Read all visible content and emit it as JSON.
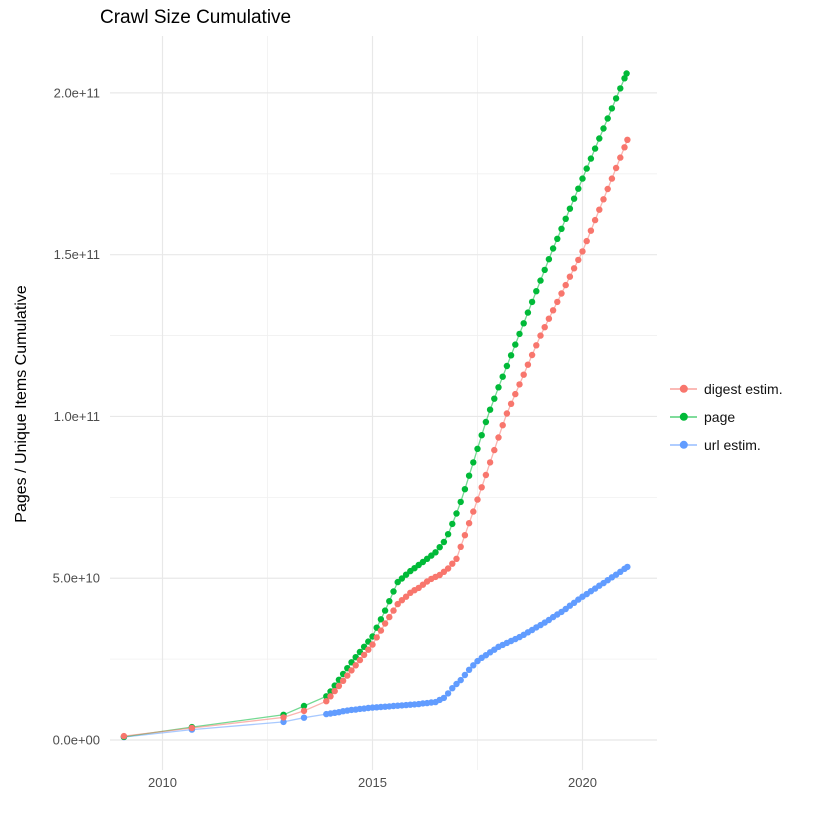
{
  "title": "Crawl Size Cumulative",
  "y_axis": {
    "title": "Pages / Unique Items Cumulative",
    "tick_labels": [
      "0.0e+00",
      "5.0e+10",
      "1.0e+11",
      "1.5e+11",
      "2.0e+11"
    ],
    "tick_values_e9": [
      0,
      50,
      100,
      150,
      200
    ],
    "minor_values_e9": [
      25,
      75,
      125,
      175
    ]
  },
  "x_axis": {
    "tick_labels": [
      "2010",
      "2015",
      "2020"
    ],
    "tick_values": [
      2010,
      2015,
      2020
    ],
    "minor_values": [
      2012.5,
      2017.5
    ]
  },
  "legend": {
    "items": [
      {
        "label": "digest estim.",
        "color": "#F8766D"
      },
      {
        "label": "page",
        "color": "#00BA38"
      },
      {
        "label": "url estim.",
        "color": "#619CFF"
      }
    ]
  },
  "chart_data": {
    "type": "scatter",
    "title": "Crawl Size Cumulative",
    "xlabel": "",
    "ylabel": "Pages / Unique Items Cumulative",
    "x_range": [
      2008.75,
      2021.75
    ],
    "y_range_e9": [
      0,
      210
    ],
    "values_unit": "pages, in billions (1e9)",
    "grid": true,
    "legend_position": "right",
    "series": [
      {
        "name": "digest estim.",
        "color": "#F8766D",
        "points": [
          [
            2009.08,
            1.2
          ],
          [
            2010.7,
            3.7
          ],
          [
            2012.88,
            7.0
          ],
          [
            2013.37,
            9.0
          ],
          [
            2013.9,
            12.0
          ],
          [
            2014.0,
            13.5
          ],
          [
            2014.1,
            15.1
          ],
          [
            2014.2,
            16.7
          ],
          [
            2014.3,
            18.3
          ],
          [
            2014.4,
            19.9
          ],
          [
            2014.5,
            21.5
          ],
          [
            2014.6,
            23.1
          ],
          [
            2014.7,
            24.7
          ],
          [
            2014.8,
            26.3
          ],
          [
            2014.9,
            27.9
          ],
          [
            2015.0,
            29.5
          ],
          [
            2015.1,
            31.7
          ],
          [
            2015.2,
            33.8
          ],
          [
            2015.3,
            36.0
          ],
          [
            2015.4,
            38.0
          ],
          [
            2015.5,
            40.0
          ],
          [
            2015.6,
            42.0
          ],
          [
            2015.7,
            43.2
          ],
          [
            2015.8,
            44.3
          ],
          [
            2015.9,
            45.5
          ],
          [
            2016.0,
            46.3
          ],
          [
            2016.1,
            47.0
          ],
          [
            2016.2,
            48.0
          ],
          [
            2016.3,
            49.0
          ],
          [
            2016.4,
            49.8
          ],
          [
            2016.5,
            50.4
          ],
          [
            2016.6,
            51.0
          ],
          [
            2016.7,
            52.0
          ],
          [
            2016.8,
            53.0
          ],
          [
            2016.9,
            54.5
          ],
          [
            2017.0,
            56.0
          ],
          [
            2017.1,
            59.7
          ],
          [
            2017.2,
            63.3
          ],
          [
            2017.3,
            67.0
          ],
          [
            2017.4,
            70.6
          ],
          [
            2017.5,
            74.3
          ],
          [
            2017.6,
            78.1
          ],
          [
            2017.7,
            81.9
          ],
          [
            2017.8,
            85.8
          ],
          [
            2017.9,
            89.6
          ],
          [
            2018.0,
            93.5
          ],
          [
            2018.1,
            97.3
          ],
          [
            2018.2,
            100.9
          ],
          [
            2018.3,
            103.9
          ],
          [
            2018.4,
            106.9
          ],
          [
            2018.5,
            109.9
          ],
          [
            2018.6,
            112.9
          ],
          [
            2018.7,
            116.0
          ],
          [
            2018.8,
            119.0
          ],
          [
            2018.9,
            122.0
          ],
          [
            2019.0,
            125.0
          ],
          [
            2019.1,
            127.6
          ],
          [
            2019.2,
            130.2
          ],
          [
            2019.3,
            132.8
          ],
          [
            2019.4,
            135.4
          ],
          [
            2019.5,
            138.0
          ],
          [
            2019.6,
            140.6
          ],
          [
            2019.7,
            143.2
          ],
          [
            2019.8,
            145.8
          ],
          [
            2019.9,
            148.4
          ],
          [
            2020.0,
            151.0
          ],
          [
            2020.1,
            154.2
          ],
          [
            2020.2,
            157.4
          ],
          [
            2020.3,
            160.7
          ],
          [
            2020.4,
            163.9
          ],
          [
            2020.5,
            167.1
          ],
          [
            2020.6,
            170.3
          ],
          [
            2020.7,
            173.5
          ],
          [
            2020.8,
            176.8
          ],
          [
            2020.9,
            180.0
          ],
          [
            2021.0,
            183.2
          ],
          [
            2021.07,
            185.5
          ]
        ]
      },
      {
        "name": "page",
        "color": "#00BA38",
        "points": [
          [
            2009.08,
            1.0
          ],
          [
            2010.7,
            4.0
          ],
          [
            2012.88,
            7.8
          ],
          [
            2013.37,
            10.5
          ],
          [
            2013.9,
            13.5
          ],
          [
            2014.0,
            15.0
          ],
          [
            2014.1,
            16.8
          ],
          [
            2014.2,
            18.6
          ],
          [
            2014.3,
            20.4
          ],
          [
            2014.4,
            22.2
          ],
          [
            2014.5,
            24.0
          ],
          [
            2014.6,
            25.6
          ],
          [
            2014.7,
            27.2
          ],
          [
            2014.8,
            28.8
          ],
          [
            2014.9,
            30.4
          ],
          [
            2015.0,
            32.0
          ],
          [
            2015.1,
            34.7
          ],
          [
            2015.2,
            37.3
          ],
          [
            2015.3,
            40.0
          ],
          [
            2015.4,
            42.9
          ],
          [
            2015.5,
            45.9
          ],
          [
            2015.6,
            48.8
          ],
          [
            2015.7,
            49.9
          ],
          [
            2015.8,
            51.1
          ],
          [
            2015.9,
            52.2
          ],
          [
            2016.0,
            53.1
          ],
          [
            2016.1,
            54.1
          ],
          [
            2016.2,
            55.0
          ],
          [
            2016.3,
            56.0
          ],
          [
            2016.4,
            57.0
          ],
          [
            2016.5,
            58.0
          ],
          [
            2016.6,
            59.6
          ],
          [
            2016.7,
            61.2
          ],
          [
            2016.8,
            63.6
          ],
          [
            2016.9,
            66.8
          ],
          [
            2017.0,
            70.0
          ],
          [
            2017.1,
            73.6
          ],
          [
            2017.2,
            77.5
          ],
          [
            2017.3,
            81.7
          ],
          [
            2017.4,
            85.8
          ],
          [
            2017.5,
            90.0
          ],
          [
            2017.6,
            94.2
          ],
          [
            2017.7,
            98.3
          ],
          [
            2017.8,
            102.1
          ],
          [
            2017.9,
            105.5
          ],
          [
            2018.0,
            109.0
          ],
          [
            2018.1,
            112.3
          ],
          [
            2018.2,
            115.6
          ],
          [
            2018.3,
            118.9
          ],
          [
            2018.4,
            122.2
          ],
          [
            2018.5,
            125.5
          ],
          [
            2018.6,
            128.8
          ],
          [
            2018.7,
            132.1
          ],
          [
            2018.8,
            135.4
          ],
          [
            2018.9,
            138.7
          ],
          [
            2019.0,
            142.0
          ],
          [
            2019.1,
            145.3
          ],
          [
            2019.2,
            148.6
          ],
          [
            2019.3,
            151.9
          ],
          [
            2019.4,
            154.9
          ],
          [
            2019.5,
            158.0
          ],
          [
            2019.6,
            161.1
          ],
          [
            2019.7,
            164.2
          ],
          [
            2019.8,
            167.3
          ],
          [
            2019.9,
            170.4
          ],
          [
            2020.0,
            173.5
          ],
          [
            2020.1,
            176.6
          ],
          [
            2020.2,
            179.7
          ],
          [
            2020.3,
            182.8
          ],
          [
            2020.4,
            185.9
          ],
          [
            2020.5,
            189.0
          ],
          [
            2020.6,
            192.1
          ],
          [
            2020.7,
            195.2
          ],
          [
            2020.8,
            198.3
          ],
          [
            2020.9,
            201.4
          ],
          [
            2021.0,
            204.5
          ],
          [
            2021.05,
            206.0
          ]
        ]
      },
      {
        "name": "url estim.",
        "color": "#619CFF",
        "points": [
          [
            2009.08,
            0.9
          ],
          [
            2010.7,
            3.2
          ],
          [
            2012.88,
            5.6
          ],
          [
            2013.37,
            6.9
          ],
          [
            2013.9,
            8.0
          ],
          [
            2014.0,
            8.2
          ],
          [
            2014.1,
            8.4
          ],
          [
            2014.2,
            8.6
          ],
          [
            2014.3,
            8.9
          ],
          [
            2014.4,
            9.1
          ],
          [
            2014.5,
            9.3
          ],
          [
            2014.6,
            9.4
          ],
          [
            2014.7,
            9.6
          ],
          [
            2014.8,
            9.7
          ],
          [
            2014.9,
            9.9
          ],
          [
            2015.0,
            10.0
          ],
          [
            2015.1,
            10.1
          ],
          [
            2015.2,
            10.2
          ],
          [
            2015.3,
            10.3
          ],
          [
            2015.4,
            10.4
          ],
          [
            2015.5,
            10.5
          ],
          [
            2015.6,
            10.6
          ],
          [
            2015.7,
            10.7
          ],
          [
            2015.8,
            10.8
          ],
          [
            2015.9,
            10.9
          ],
          [
            2016.0,
            11.0
          ],
          [
            2016.1,
            11.1
          ],
          [
            2016.2,
            11.3
          ],
          [
            2016.3,
            11.4
          ],
          [
            2016.4,
            11.6
          ],
          [
            2016.5,
            11.7
          ],
          [
            2016.6,
            12.4
          ],
          [
            2016.7,
            13.0
          ],
          [
            2016.8,
            14.4
          ],
          [
            2016.9,
            16.0
          ],
          [
            2017.0,
            17.3
          ],
          [
            2017.1,
            18.5
          ],
          [
            2017.2,
            20.1
          ],
          [
            2017.3,
            21.7
          ],
          [
            2017.4,
            23.1
          ],
          [
            2017.5,
            24.4
          ],
          [
            2017.6,
            25.4
          ],
          [
            2017.7,
            26.2
          ],
          [
            2017.8,
            27.1
          ],
          [
            2017.9,
            27.9
          ],
          [
            2018.0,
            28.8
          ],
          [
            2018.1,
            29.4
          ],
          [
            2018.2,
            30.0
          ],
          [
            2018.3,
            30.6
          ],
          [
            2018.4,
            31.2
          ],
          [
            2018.5,
            31.8
          ],
          [
            2018.6,
            32.5
          ],
          [
            2018.7,
            33.3
          ],
          [
            2018.8,
            34.0
          ],
          [
            2018.9,
            34.8
          ],
          [
            2019.0,
            35.5
          ],
          [
            2019.1,
            36.3
          ],
          [
            2019.2,
            37.1
          ],
          [
            2019.3,
            38.0
          ],
          [
            2019.4,
            38.8
          ],
          [
            2019.5,
            39.6
          ],
          [
            2019.6,
            40.5
          ],
          [
            2019.7,
            41.5
          ],
          [
            2019.8,
            42.4
          ],
          [
            2019.9,
            43.4
          ],
          [
            2020.0,
            44.3
          ],
          [
            2020.1,
            45.1
          ],
          [
            2020.2,
            46.0
          ],
          [
            2020.3,
            46.8
          ],
          [
            2020.4,
            47.7
          ],
          [
            2020.5,
            48.5
          ],
          [
            2020.6,
            49.4
          ],
          [
            2020.7,
            50.3
          ],
          [
            2020.8,
            51.1
          ],
          [
            2020.9,
            52.0
          ],
          [
            2021.0,
            52.9
          ],
          [
            2021.07,
            53.5
          ]
        ]
      }
    ]
  }
}
